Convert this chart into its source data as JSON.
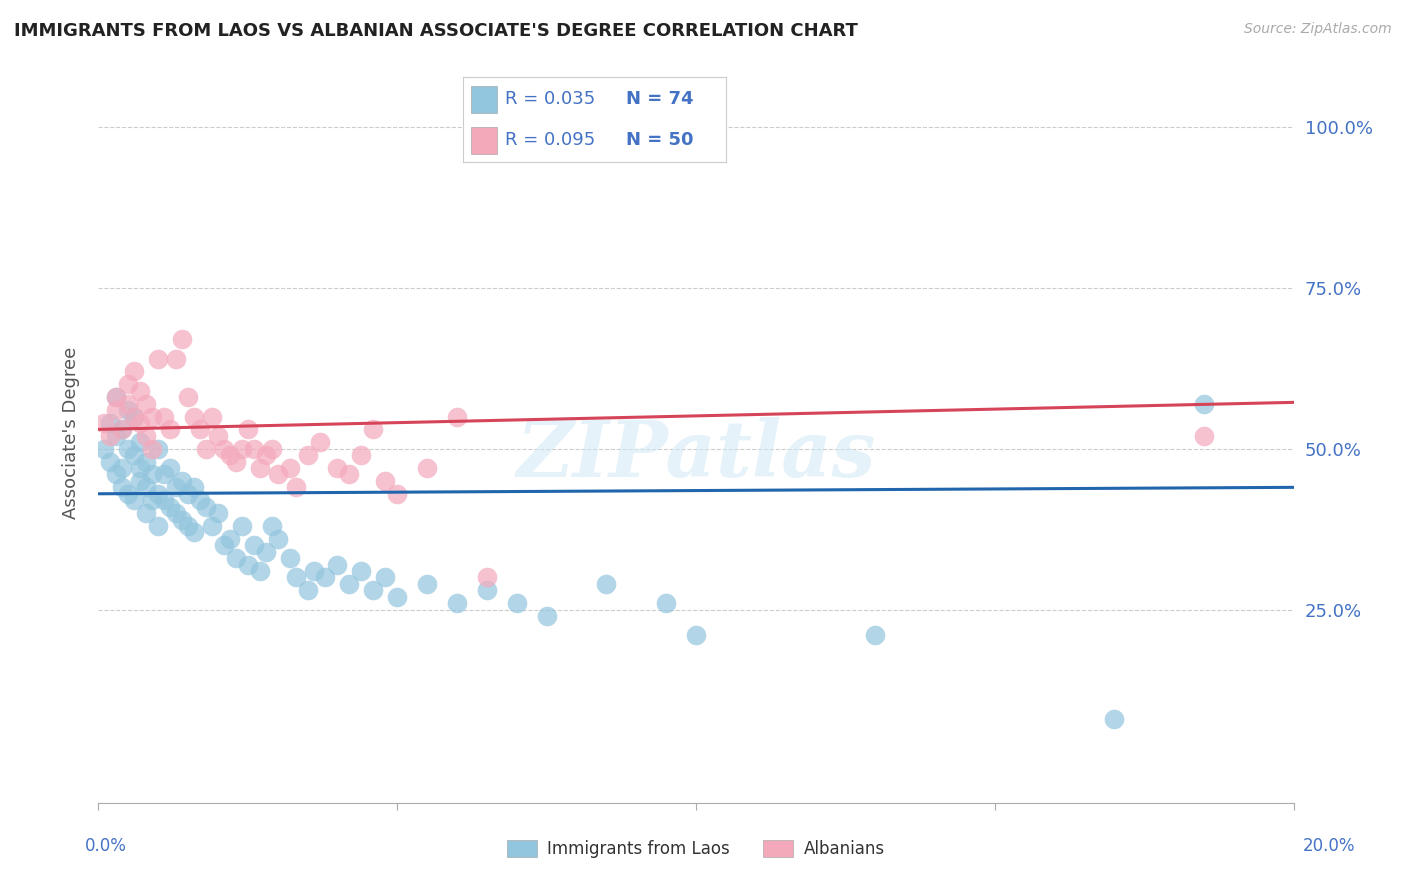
{
  "title": "IMMIGRANTS FROM LAOS VS ALBANIAN ASSOCIATE'S DEGREE CORRELATION CHART",
  "source": "Source: ZipAtlas.com",
  "ylabel": "Associate's Degree",
  "y_tick_labels": [
    "100.0%",
    "75.0%",
    "50.0%",
    "25.0%"
  ],
  "y_tick_positions": [
    1.0,
    0.75,
    0.5,
    0.25
  ],
  "xlim": [
    0.0,
    0.2
  ],
  "ylim": [
    -0.05,
    1.1
  ],
  "color_blue": "#92c5de",
  "color_pink": "#f4a9bb",
  "line_color_blue": "#2166ac",
  "line_color_pink": "#d6445a",
  "label_color": "#4472c4",
  "watermark": "ZIPatlas",
  "blue_scatter_x": [
    0.001,
    0.002,
    0.002,
    0.003,
    0.003,
    0.003,
    0.004,
    0.004,
    0.004,
    0.005,
    0.005,
    0.005,
    0.006,
    0.006,
    0.006,
    0.007,
    0.007,
    0.007,
    0.008,
    0.008,
    0.008,
    0.009,
    0.009,
    0.01,
    0.01,
    0.01,
    0.011,
    0.011,
    0.012,
    0.012,
    0.013,
    0.013,
    0.014,
    0.014,
    0.015,
    0.015,
    0.016,
    0.016,
    0.017,
    0.018,
    0.019,
    0.02,
    0.021,
    0.022,
    0.023,
    0.024,
    0.025,
    0.026,
    0.027,
    0.028,
    0.029,
    0.03,
    0.032,
    0.033,
    0.035,
    0.036,
    0.038,
    0.04,
    0.042,
    0.044,
    0.046,
    0.048,
    0.05,
    0.055,
    0.06,
    0.065,
    0.07,
    0.075,
    0.085,
    0.095,
    0.1,
    0.13,
    0.17,
    0.185
  ],
  "blue_scatter_y": [
    0.5,
    0.48,
    0.54,
    0.52,
    0.46,
    0.58,
    0.47,
    0.53,
    0.44,
    0.5,
    0.56,
    0.43,
    0.49,
    0.55,
    0.42,
    0.51,
    0.47,
    0.45,
    0.48,
    0.44,
    0.4,
    0.46,
    0.42,
    0.5,
    0.43,
    0.38,
    0.46,
    0.42,
    0.47,
    0.41,
    0.44,
    0.4,
    0.45,
    0.39,
    0.43,
    0.38,
    0.44,
    0.37,
    0.42,
    0.41,
    0.38,
    0.4,
    0.35,
    0.36,
    0.33,
    0.38,
    0.32,
    0.35,
    0.31,
    0.34,
    0.38,
    0.36,
    0.33,
    0.3,
    0.28,
    0.31,
    0.3,
    0.32,
    0.29,
    0.31,
    0.28,
    0.3,
    0.27,
    0.29,
    0.26,
    0.28,
    0.26,
    0.24,
    0.29,
    0.26,
    0.21,
    0.21,
    0.08,
    0.57
  ],
  "pink_scatter_x": [
    0.001,
    0.002,
    0.003,
    0.003,
    0.004,
    0.005,
    0.005,
    0.006,
    0.006,
    0.007,
    0.007,
    0.008,
    0.008,
    0.009,
    0.009,
    0.01,
    0.011,
    0.012,
    0.013,
    0.014,
    0.015,
    0.016,
    0.017,
    0.018,
    0.019,
    0.02,
    0.021,
    0.022,
    0.023,
    0.024,
    0.025,
    0.026,
    0.027,
    0.028,
    0.029,
    0.03,
    0.032,
    0.033,
    0.035,
    0.037,
    0.04,
    0.042,
    0.044,
    0.046,
    0.048,
    0.05,
    0.055,
    0.06,
    0.065,
    0.185
  ],
  "pink_scatter_y": [
    0.54,
    0.52,
    0.58,
    0.56,
    0.53,
    0.6,
    0.57,
    0.55,
    0.62,
    0.59,
    0.54,
    0.57,
    0.52,
    0.55,
    0.5,
    0.64,
    0.55,
    0.53,
    0.64,
    0.67,
    0.58,
    0.55,
    0.53,
    0.5,
    0.55,
    0.52,
    0.5,
    0.49,
    0.48,
    0.5,
    0.53,
    0.5,
    0.47,
    0.49,
    0.5,
    0.46,
    0.47,
    0.44,
    0.49,
    0.51,
    0.47,
    0.46,
    0.49,
    0.53,
    0.45,
    0.43,
    0.47,
    0.55,
    0.3,
    0.52
  ],
  "blue_line_x": [
    0.0,
    0.2
  ],
  "blue_line_y": [
    0.43,
    0.44
  ],
  "pink_line_x": [
    0.0,
    0.2
  ],
  "pink_line_y": [
    0.53,
    0.572
  ],
  "x_ticks": [
    0.0,
    0.05,
    0.1,
    0.15,
    0.2
  ],
  "legend_entries": [
    {
      "color": "#92c5de",
      "r": "R = 0.035",
      "n": "N = 74"
    },
    {
      "color": "#f4a9bb",
      "r": "R = 0.095",
      "n": "N = 50"
    }
  ]
}
